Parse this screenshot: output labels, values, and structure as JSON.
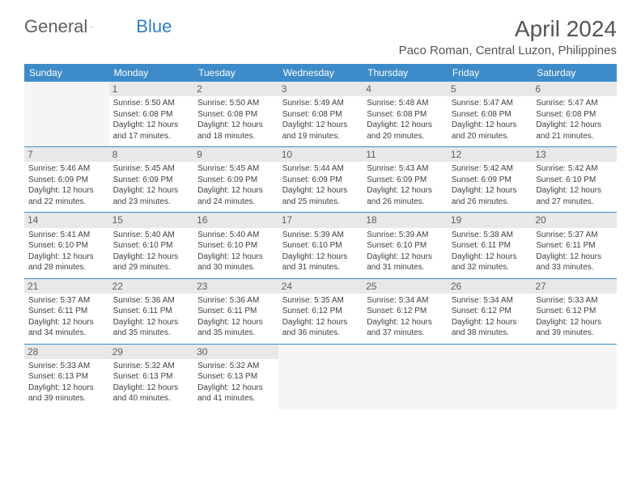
{
  "logo": {
    "text1": "General",
    "text2": "Blue",
    "shape_color": "#2d7fc7"
  },
  "title": "April 2024",
  "location": "Paco Roman, Central Luzon, Philippines",
  "header_bg": "#3d8cc9",
  "divider_color": "#3d8cc9",
  "days_of_week": [
    "Sunday",
    "Monday",
    "Tuesday",
    "Wednesday",
    "Thursday",
    "Friday",
    "Saturday"
  ],
  "weeks": [
    [
      null,
      {
        "n": "1",
        "sr": "5:50 AM",
        "ss": "6:08 PM",
        "dlh": "12",
        "dlm": "17"
      },
      {
        "n": "2",
        "sr": "5:50 AM",
        "ss": "6:08 PM",
        "dlh": "12",
        "dlm": "18"
      },
      {
        "n": "3",
        "sr": "5:49 AM",
        "ss": "6:08 PM",
        "dlh": "12",
        "dlm": "19"
      },
      {
        "n": "4",
        "sr": "5:48 AM",
        "ss": "6:08 PM",
        "dlh": "12",
        "dlm": "20"
      },
      {
        "n": "5",
        "sr": "5:47 AM",
        "ss": "6:08 PM",
        "dlh": "12",
        "dlm": "20"
      },
      {
        "n": "6",
        "sr": "5:47 AM",
        "ss": "6:08 PM",
        "dlh": "12",
        "dlm": "21"
      }
    ],
    [
      {
        "n": "7",
        "sr": "5:46 AM",
        "ss": "6:09 PM",
        "dlh": "12",
        "dlm": "22"
      },
      {
        "n": "8",
        "sr": "5:45 AM",
        "ss": "6:09 PM",
        "dlh": "12",
        "dlm": "23"
      },
      {
        "n": "9",
        "sr": "5:45 AM",
        "ss": "6:09 PM",
        "dlh": "12",
        "dlm": "24"
      },
      {
        "n": "10",
        "sr": "5:44 AM",
        "ss": "6:09 PM",
        "dlh": "12",
        "dlm": "25"
      },
      {
        "n": "11",
        "sr": "5:43 AM",
        "ss": "6:09 PM",
        "dlh": "12",
        "dlm": "26"
      },
      {
        "n": "12",
        "sr": "5:42 AM",
        "ss": "6:09 PM",
        "dlh": "12",
        "dlm": "26"
      },
      {
        "n": "13",
        "sr": "5:42 AM",
        "ss": "6:10 PM",
        "dlh": "12",
        "dlm": "27"
      }
    ],
    [
      {
        "n": "14",
        "sr": "5:41 AM",
        "ss": "6:10 PM",
        "dlh": "12",
        "dlm": "28"
      },
      {
        "n": "15",
        "sr": "5:40 AM",
        "ss": "6:10 PM",
        "dlh": "12",
        "dlm": "29"
      },
      {
        "n": "16",
        "sr": "5:40 AM",
        "ss": "6:10 PM",
        "dlh": "12",
        "dlm": "30"
      },
      {
        "n": "17",
        "sr": "5:39 AM",
        "ss": "6:10 PM",
        "dlh": "12",
        "dlm": "31"
      },
      {
        "n": "18",
        "sr": "5:39 AM",
        "ss": "6:10 PM",
        "dlh": "12",
        "dlm": "31"
      },
      {
        "n": "19",
        "sr": "5:38 AM",
        "ss": "6:11 PM",
        "dlh": "12",
        "dlm": "32"
      },
      {
        "n": "20",
        "sr": "5:37 AM",
        "ss": "6:11 PM",
        "dlh": "12",
        "dlm": "33"
      }
    ],
    [
      {
        "n": "21",
        "sr": "5:37 AM",
        "ss": "6:11 PM",
        "dlh": "12",
        "dlm": "34"
      },
      {
        "n": "22",
        "sr": "5:36 AM",
        "ss": "6:11 PM",
        "dlh": "12",
        "dlm": "35"
      },
      {
        "n": "23",
        "sr": "5:36 AM",
        "ss": "6:11 PM",
        "dlh": "12",
        "dlm": "35"
      },
      {
        "n": "24",
        "sr": "5:35 AM",
        "ss": "6:12 PM",
        "dlh": "12",
        "dlm": "36"
      },
      {
        "n": "25",
        "sr": "5:34 AM",
        "ss": "6:12 PM",
        "dlh": "12",
        "dlm": "37"
      },
      {
        "n": "26",
        "sr": "5:34 AM",
        "ss": "6:12 PM",
        "dlh": "12",
        "dlm": "38"
      },
      {
        "n": "27",
        "sr": "5:33 AM",
        "ss": "6:12 PM",
        "dlh": "12",
        "dlm": "39"
      }
    ],
    [
      {
        "n": "28",
        "sr": "5:33 AM",
        "ss": "6:13 PM",
        "dlh": "12",
        "dlm": "39"
      },
      {
        "n": "29",
        "sr": "5:32 AM",
        "ss": "6:13 PM",
        "dlh": "12",
        "dlm": "40"
      },
      {
        "n": "30",
        "sr": "5:32 AM",
        "ss": "6:13 PM",
        "dlh": "12",
        "dlm": "41"
      },
      null,
      null,
      null,
      null
    ]
  ],
  "labels": {
    "sunrise_prefix": "Sunrise: ",
    "sunset_prefix": "Sunset: ",
    "daylight_prefix": "Daylight: ",
    "hours_word": " hours",
    "and_word": "and ",
    "minutes_word": " minutes."
  }
}
